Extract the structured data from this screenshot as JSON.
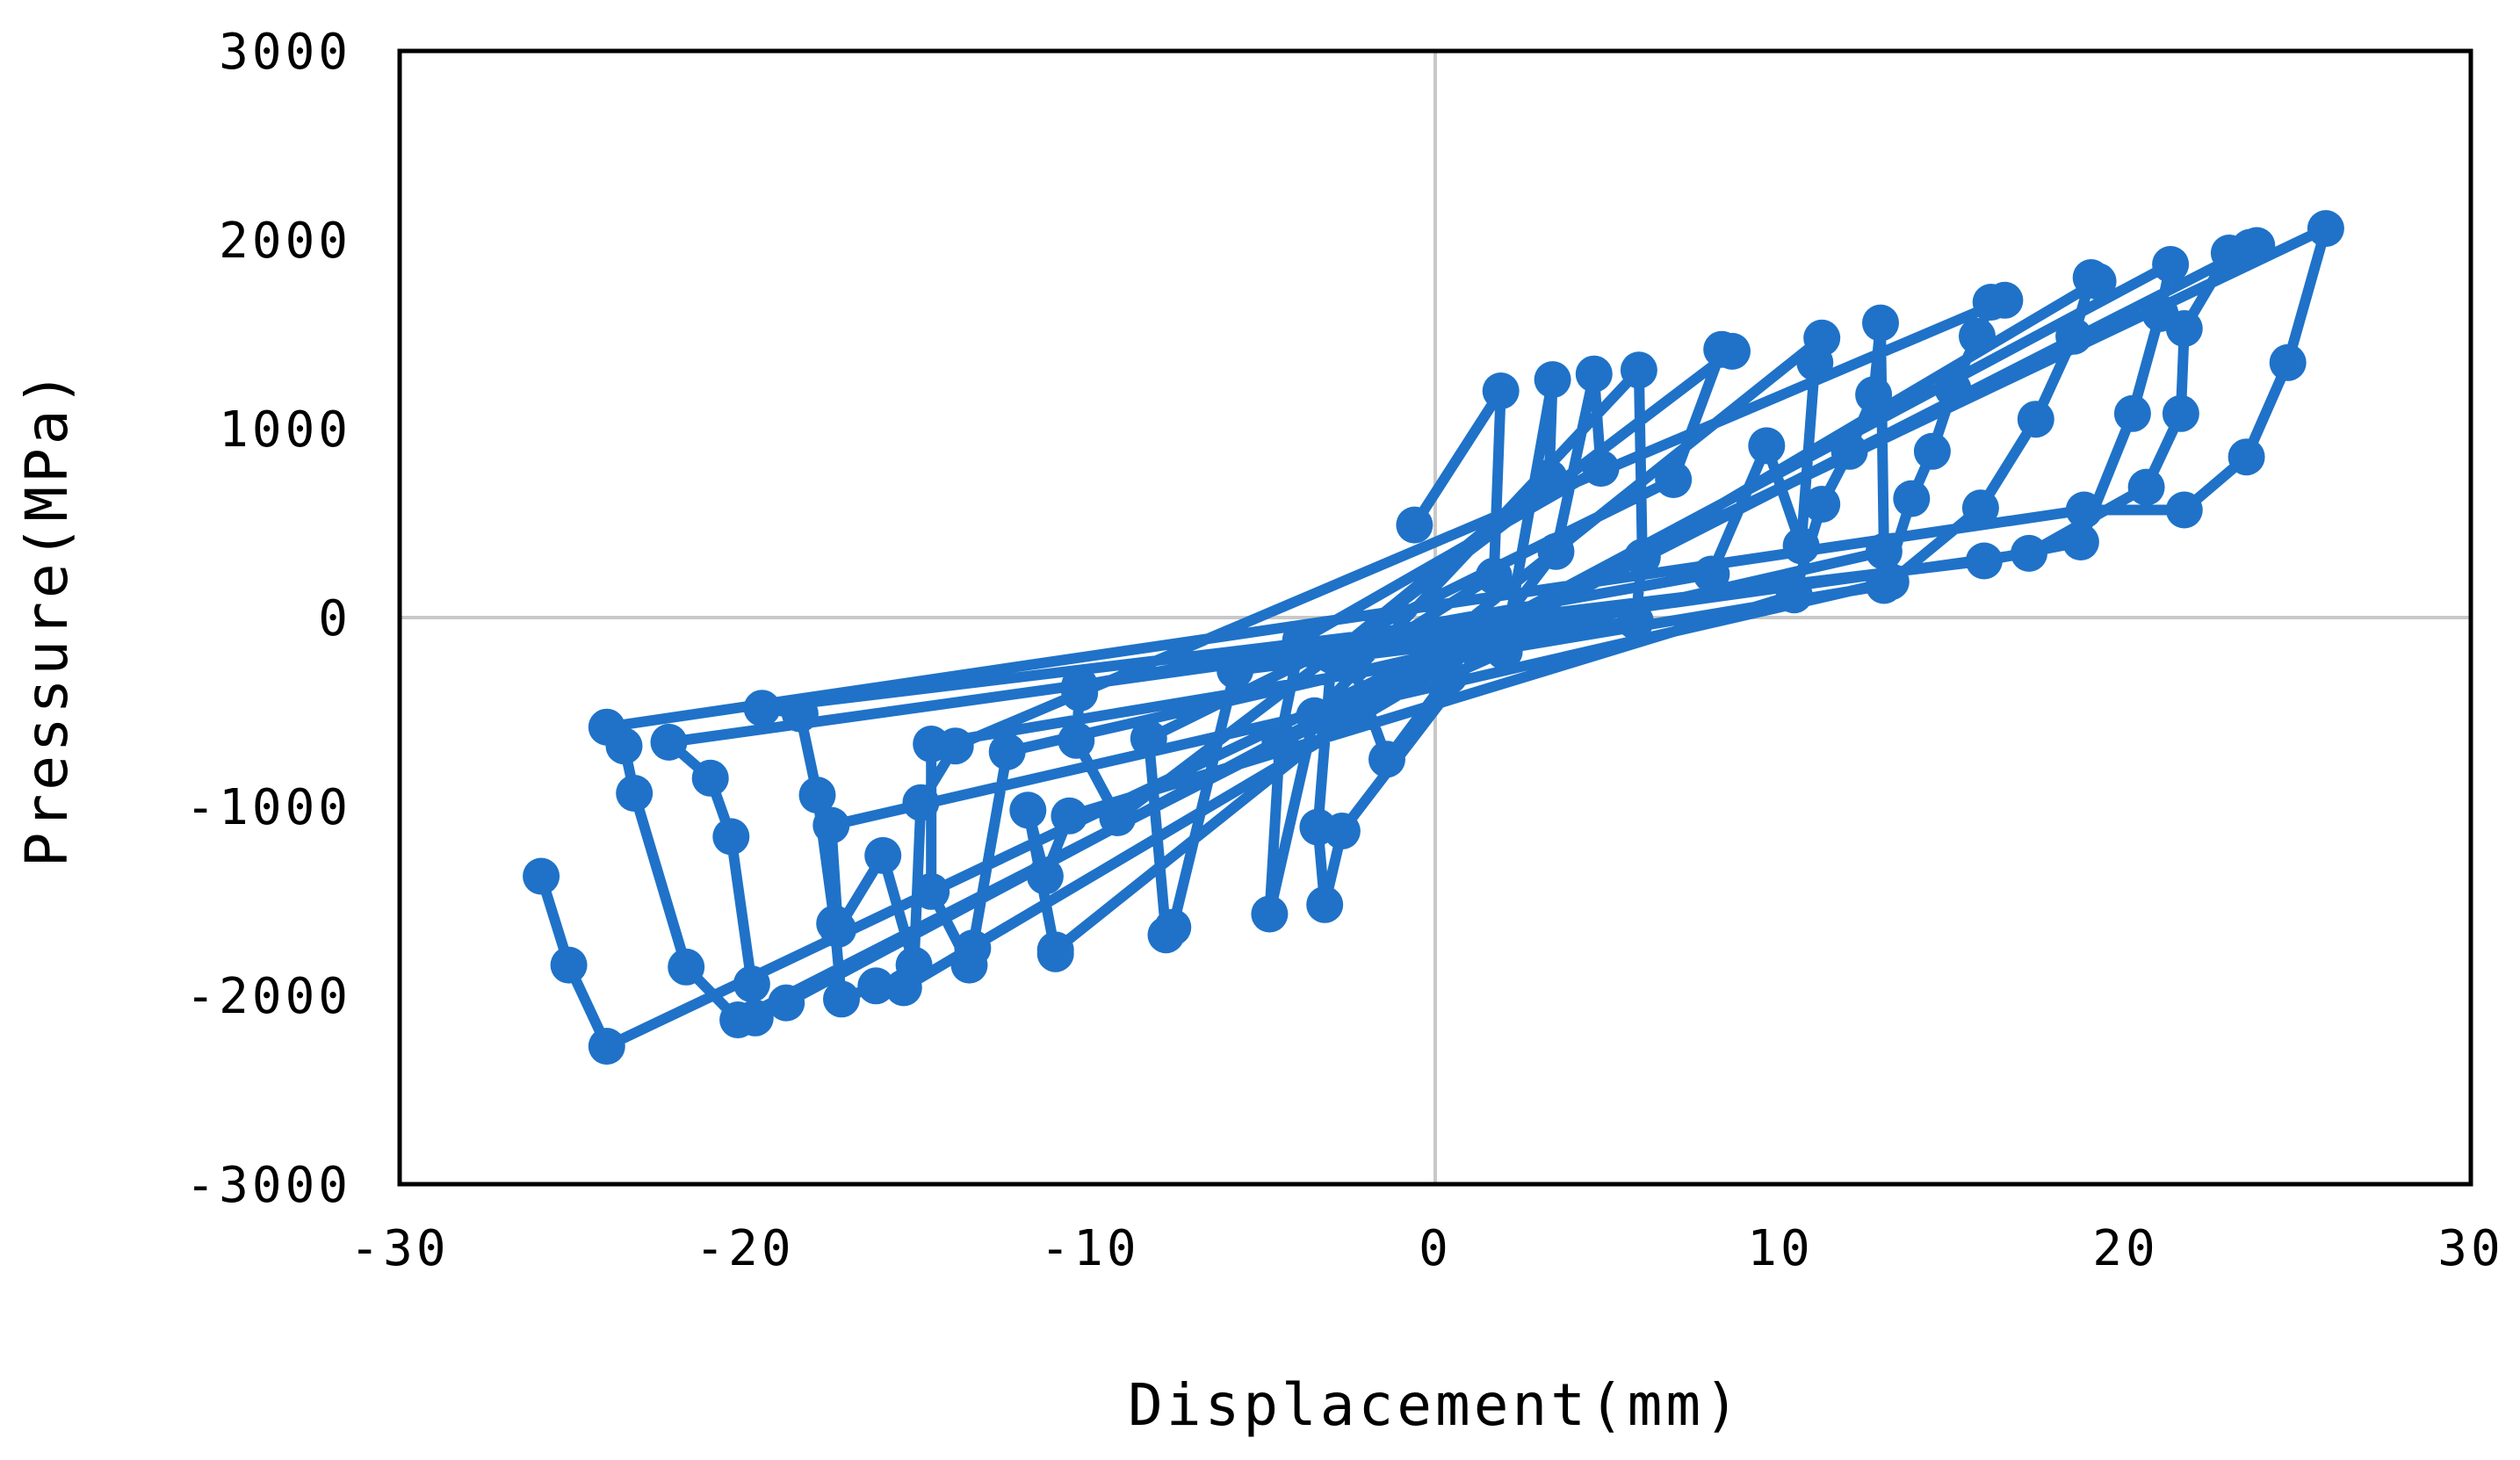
{
  "chart_data": {
    "type": "scatter",
    "mode": "lines+markers",
    "xlabel": "Displacement(mm)",
    "ylabel": "Pressure(MPa)",
    "xlim": [
      -30,
      30
    ],
    "ylim": [
      -3000,
      3000
    ],
    "xticks": [
      -30,
      -20,
      -10,
      0,
      10,
      20,
      30
    ],
    "yticks": [
      -3000,
      -2000,
      -1000,
      0,
      1000,
      2000,
      3000
    ],
    "xtick_labels": [
      "-30",
      "-20",
      "-10",
      "0",
      "10",
      "20",
      "30"
    ],
    "ytick_labels": [
      "-3000",
      "-2000",
      "-1000",
      "0",
      "1000",
      "2000",
      "3000"
    ],
    "zero_lines": true,
    "legend": "none",
    "colors": {
      "series": "#1f72c8",
      "zero_line": "#c8c8c8",
      "frame": "#000000"
    },
    "series": [
      {
        "x": [
          -0.6,
          1.9,
          1.7,
          -2.4,
          -1.4,
          0.4,
          2.0,
          3.4,
          3.3,
          -3.0,
          -3.4,
          -3.2,
          -2.7,
          3.5,
          4.6,
          4.8,
          -3.9,
          -4.5,
          -4.8,
          -3.5,
          5.9,
          6.0,
          5.8,
          -5.8,
          -7.6,
          -7.8,
          -8.3,
          6.9,
          8.3,
          8.6,
          -9.2,
          -10.4,
          -10.3,
          -10.3,
          8.0,
          9.6,
          10.6,
          11.0,
          11.2,
          -11.0,
          -11.0,
          -11.8,
          -11.3,
          -10.6,
          10.4,
          11.2,
          12.0,
          12.7,
          12.9,
          13.0,
          -12.4,
          -13.4,
          -13.5,
          -14.6,
          -14.6,
          13.0,
          13.8,
          14.4,
          15.0,
          15.7,
          16.1,
          16.5,
          -13.9,
          -14.9,
          -15.1,
          -16.0,
          -17.3,
          -17.5,
          13.2,
          15.8,
          17.4,
          18.5,
          19.0,
          19.2,
          -15.4,
          -16.2,
          -17.2,
          -17.4,
          -17.9,
          -18.4,
          -19.5,
          15.9,
          18.7,
          20.2,
          21.0,
          21.3,
          -18.8,
          -19.7,
          -19.8,
          -20.4,
          -21.0,
          -22.2,
          17.2,
          20.6,
          21.6,
          21.7,
          23.0,
          23.6,
          23.8,
          -20.2,
          -21.7,
          -23.2,
          -23.5,
          -24.0,
          18.8,
          21.7,
          23.5,
          24.7,
          25.8,
          -24.0,
          -25.1,
          -25.9
        ],
        "y": [
          490,
          1200,
          220,
          -250,
          -750,
          -310,
          -180,
          1260,
          740,
          -200,
          -1110,
          -1520,
          -1130,
          350,
          1290,
          790,
          -120,
          -650,
          -1570,
          -520,
          1310,
          320,
          -20,
          -280,
          -1640,
          -1680,
          -640,
          730,
          1420,
          1410,
          -1060,
          -650,
          -400,
          -360,
          230,
          910,
          380,
          1350,
          1480,
          -1760,
          -1780,
          -1020,
          -1370,
          -1050,
          120,
          600,
          880,
          1180,
          1560,
          350,
          -710,
          -1750,
          -1840,
          -1450,
          -670,
          170,
          630,
          880,
          1210,
          1490,
          1670,
          1680,
          -680,
          -980,
          -1840,
          -1260,
          -1650,
          -1100,
          190,
          580,
          1050,
          1490,
          1800,
          1780,
          -1960,
          -1950,
          -2020,
          -1620,
          -940,
          -510,
          -480,
          300,
          400,
          1080,
          1610,
          1870,
          -2040,
          -2120,
          -1940,
          -1160,
          -850,
          -660,
          340,
          690,
          1080,
          1530,
          1930,
          1960,
          1970,
          -2130,
          -1850,
          -930,
          -680,
          -580,
          570,
          570,
          850,
          1350,
          2060,
          -2270,
          -1840,
          -1370
        ]
      }
    ]
  }
}
